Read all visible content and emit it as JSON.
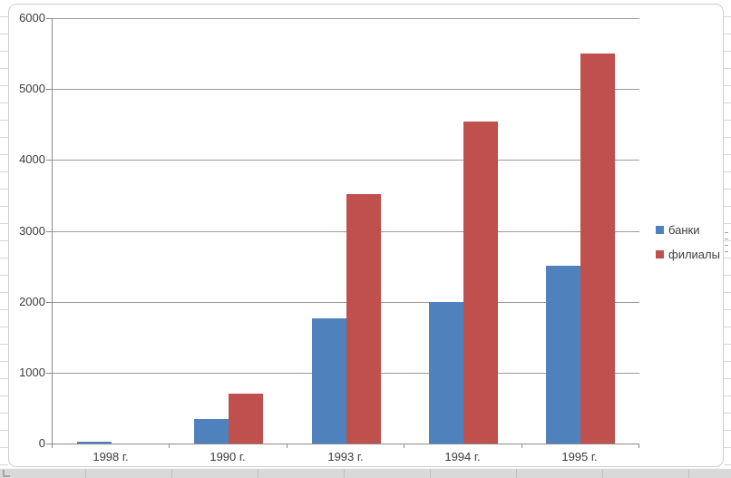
{
  "colors": {
    "series_banks": "#4F81BD",
    "series_branches": "#C0504D",
    "gridline": "#9b9b9b",
    "axis_line": "#8c8c8c",
    "label_text": "#3d3d3d",
    "chart_border": "#ccccd4",
    "statusbar_bg": "#d9d9d9"
  },
  "chart_data": {
    "type": "bar",
    "title": "",
    "categories": [
      "1998 г.",
      "1990 г.",
      "1993 г.",
      "1994 г.",
      "1995 г."
    ],
    "series": [
      {
        "name": "банки",
        "color": "#4F81BD",
        "values": [
          30,
          340,
          1770,
          2000,
          2510
        ]
      },
      {
        "name": "филиалы",
        "color": "#C0504D",
        "values": [
          0,
          700,
          3520,
          4540,
          5500
        ]
      }
    ],
    "xlabel": "",
    "ylabel": "",
    "ylim": [
      0,
      6000
    ],
    "ytick_interval": 1000,
    "yticks": [
      0,
      1000,
      2000,
      3000,
      4000,
      5000,
      6000
    ],
    "grid": true,
    "legend_position": "middle-right"
  }
}
